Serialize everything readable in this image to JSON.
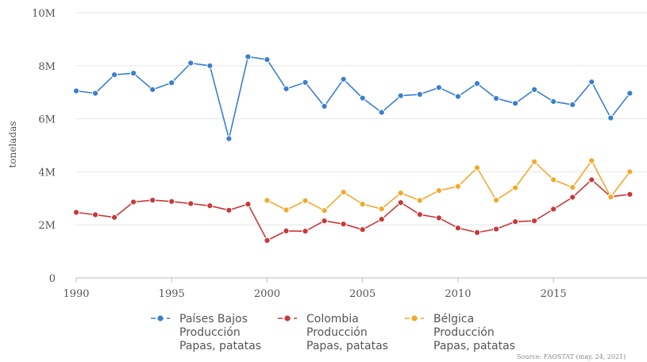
{
  "chart_data": {
    "type": "line",
    "title": "",
    "xlabel": "",
    "ylabel": "toneladas",
    "ylim": [
      0,
      10000000
    ],
    "xlim": [
      1990,
      2019
    ],
    "y_ticks": [
      {
        "value": 0,
        "label": "0"
      },
      {
        "value": 2000000,
        "label": "2M"
      },
      {
        "value": 4000000,
        "label": "4M"
      },
      {
        "value": 6000000,
        "label": "6M"
      },
      {
        "value": 8000000,
        "label": "8M"
      },
      {
        "value": 10000000,
        "label": "10M"
      }
    ],
    "x_ticks": [
      {
        "value": 1990,
        "label": "1990"
      },
      {
        "value": 1995,
        "label": "1995"
      },
      {
        "value": 2000,
        "label": "2000"
      },
      {
        "value": 2005,
        "label": "2005"
      },
      {
        "value": 2010,
        "label": "2010"
      },
      {
        "value": 2015,
        "label": "2015"
      }
    ],
    "grid": true,
    "legend_position": "bottom",
    "source": "Source: FAOSTAT (may. 24, 2021)",
    "series": [
      {
        "name_lines": [
          "Países Bajos",
          "Producción",
          "Papas, patatas"
        ],
        "color": "#3a7fcf",
        "x": [
          1990,
          1991,
          1992,
          1993,
          1994,
          1995,
          1996,
          1997,
          1998,
          1999,
          2000,
          2001,
          2002,
          2003,
          2004,
          2005,
          2006,
          2007,
          2008,
          2009,
          2010,
          2011,
          2012,
          2013,
          2014,
          2015,
          2016,
          2017,
          2018,
          2019
        ],
        "y": [
          7050000,
          6960000,
          7660000,
          7720000,
          7100000,
          7360000,
          8100000,
          8000000,
          5250000,
          8340000,
          8230000,
          7130000,
          7370000,
          6470000,
          7490000,
          6780000,
          6240000,
          6870000,
          6920000,
          7180000,
          6840000,
          7330000,
          6770000,
          6580000,
          7100000,
          6650000,
          6530000,
          7390000,
          6030000,
          6960000
        ]
      },
      {
        "name_lines": [
          "Colombia",
          "Producción",
          "Papas, patatas"
        ],
        "color": "#c8383a",
        "x": [
          1990,
          1991,
          1992,
          1993,
          1994,
          1995,
          1996,
          1997,
          1998,
          1999,
          2000,
          2001,
          2002,
          2003,
          2004,
          2005,
          2006,
          2007,
          2008,
          2009,
          2010,
          2011,
          2012,
          2013,
          2014,
          2015,
          2016,
          2017,
          2018,
          2019
        ],
        "y": [
          2470000,
          2380000,
          2280000,
          2860000,
          2930000,
          2880000,
          2800000,
          2720000,
          2550000,
          2780000,
          1410000,
          1770000,
          1760000,
          2150000,
          2030000,
          1820000,
          2210000,
          2840000,
          2390000,
          2260000,
          1880000,
          1710000,
          1840000,
          2120000,
          2150000,
          2590000,
          3040000,
          3700000,
          3060000,
          3150000
        ]
      },
      {
        "name_lines": [
          "Bélgica",
          "Producción",
          "Papas, patatas"
        ],
        "color": "#f2a92b",
        "x": [
          2000,
          2001,
          2002,
          2003,
          2004,
          2005,
          2006,
          2007,
          2008,
          2009,
          2010,
          2011,
          2012,
          2013,
          2014,
          2015,
          2016,
          2017,
          2018,
          2019
        ],
        "y": [
          2920000,
          2560000,
          2910000,
          2540000,
          3230000,
          2780000,
          2600000,
          3200000,
          2920000,
          3290000,
          3450000,
          4150000,
          2930000,
          3400000,
          4380000,
          3700000,
          3410000,
          4420000,
          3050000,
          4000000
        ]
      }
    ]
  }
}
